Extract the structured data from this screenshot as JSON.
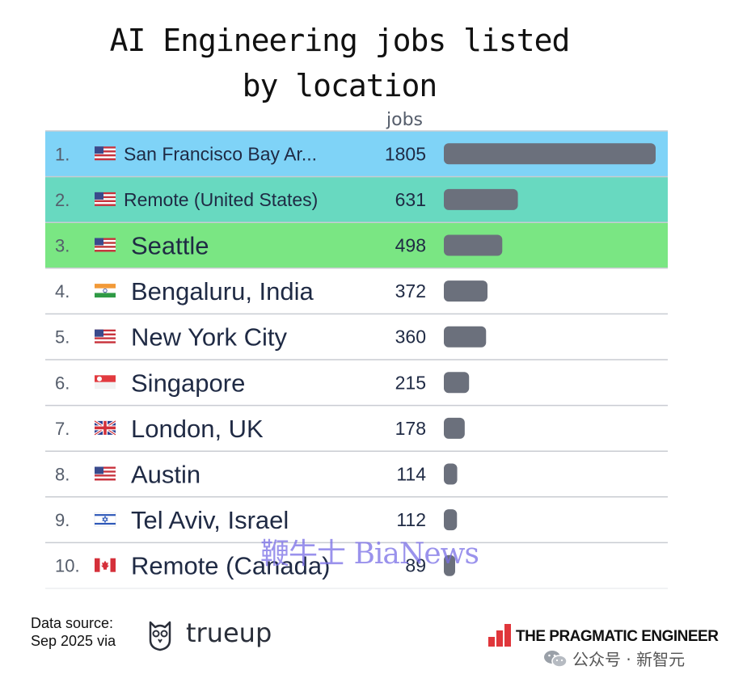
{
  "title_line1": "AI Engineering jobs listed",
  "title_line2": "by location",
  "column_header": "jobs",
  "chart_data": {
    "type": "bar",
    "orientation": "horizontal",
    "title": "AI Engineering jobs listed by location",
    "value_label": "jobs",
    "rows": [
      {
        "rank": "1.",
        "flag": "us-flag",
        "label": "San Francisco Bay Ar...",
        "value": 1805,
        "highlight": "#7fd3f7"
      },
      {
        "rank": "2.",
        "flag": "us-flag",
        "label": "Remote (United States)",
        "value": 631,
        "highlight": "#68d9c0"
      },
      {
        "rank": "3.",
        "flag": "us-flag",
        "label": "Seattle",
        "value": 498,
        "highlight": "#7ae683"
      },
      {
        "rank": "4.",
        "flag": "india-flag",
        "label": "Bengaluru, India",
        "value": 372,
        "highlight": ""
      },
      {
        "rank": "5.",
        "flag": "us-flag",
        "label": "New York City",
        "value": 360,
        "highlight": ""
      },
      {
        "rank": "6.",
        "flag": "singapore-flag",
        "label": "Singapore",
        "value": 215,
        "highlight": ""
      },
      {
        "rank": "7.",
        "flag": "uk-flag",
        "label": "London, UK",
        "value": 178,
        "highlight": ""
      },
      {
        "rank": "8.",
        "flag": "us-flag",
        "label": "Austin",
        "value": 114,
        "highlight": ""
      },
      {
        "rank": "9.",
        "flag": "israel-flag",
        "label": "Tel Aviv, Israel",
        "value": 112,
        "highlight": ""
      },
      {
        "rank": "10.",
        "flag": "canada-flag",
        "label": "Remote (Canada)",
        "value": 89,
        "highlight": ""
      }
    ],
    "bar_color": "#6b707c"
  },
  "watermark": "鞭牛士 BiaNews",
  "source_line1": "Data source:",
  "source_line2": "Sep 2025 via",
  "source_brand": "trueup",
  "publisher": "THE PRAGMATIC ENGINEER",
  "wechat_label": "公众号 · 新智元"
}
